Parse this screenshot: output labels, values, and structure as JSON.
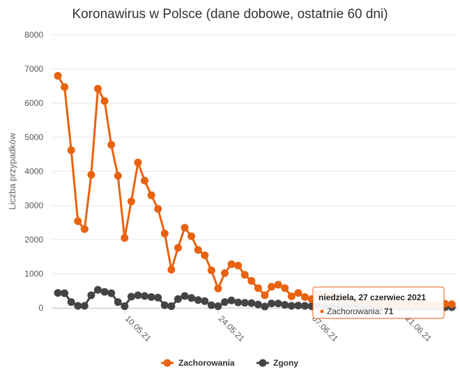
{
  "chart_data": {
    "type": "line",
    "title": "Koronawirus w Polsce (dane dobowe, ostatnie 60 dni)",
    "ylabel": "Liczba przypadków",
    "ylim": [
      0,
      8000
    ],
    "yticks": [
      0,
      1000,
      2000,
      3000,
      4000,
      5000,
      6000,
      7000,
      8000
    ],
    "xticks": [
      {
        "label": "10.05.21",
        "index": 10
      },
      {
        "label": "24.05.21",
        "index": 24
      },
      {
        "label": "07.06.21",
        "index": 38
      },
      {
        "label": "21.06.21",
        "index": 52
      }
    ],
    "grid": true,
    "legend_position": "bottom",
    "series": [
      {
        "name": "Zachorowania",
        "color": "#e8620f",
        "values": [
          6800,
          6470,
          4620,
          2540,
          2310,
          3900,
          6420,
          6060,
          4780,
          3870,
          2050,
          3120,
          4260,
          3730,
          3300,
          2900,
          2180,
          1120,
          1760,
          2350,
          2100,
          1700,
          1540,
          1100,
          570,
          1020,
          1280,
          1240,
          970,
          790,
          580,
          370,
          620,
          680,
          580,
          340,
          440,
          320,
          260,
          420,
          380,
          330,
          300,
          240,
          210,
          190,
          170,
          150,
          140,
          130,
          110,
          100,
          120,
          110,
          100,
          90,
          80,
          71,
          120,
          110
        ]
      },
      {
        "name": "Zgony",
        "color": "#444444",
        "values": [
          440,
          430,
          170,
          60,
          60,
          370,
          530,
          470,
          430,
          170,
          50,
          330,
          370,
          350,
          320,
          300,
          80,
          50,
          260,
          350,
          290,
          230,
          200,
          80,
          50,
          170,
          220,
          160,
          150,
          140,
          100,
          40,
          130,
          130,
          90,
          60,
          70,
          60,
          50,
          60,
          40,
          40,
          50,
          40,
          50,
          40,
          30,
          30,
          40,
          30,
          30,
          20,
          20,
          20,
          20,
          20,
          20,
          20,
          20,
          20
        ]
      }
    ],
    "tooltip": {
      "date": "niedziela, 27 czerwiec 2021",
      "series": "Zachorowania",
      "value": "71",
      "index": 57
    }
  }
}
